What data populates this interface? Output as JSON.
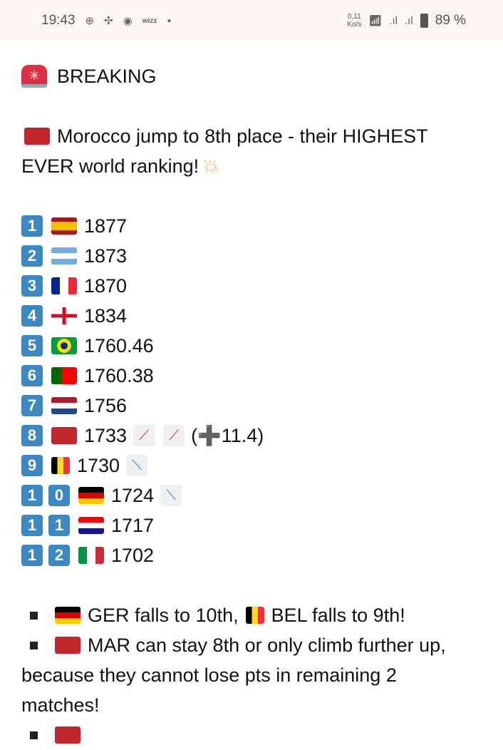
{
  "status_bar": {
    "time": "19:43",
    "speed_top": "0,11",
    "speed_bottom": "Ko/s",
    "battery": "89 %",
    "icons": [
      "cricket-icon",
      "fan-icon",
      "location-icon",
      "wizz-icon",
      "dot-icon",
      "wifi-icon",
      "signal-icon",
      "signal-icon",
      "battery-icon"
    ]
  },
  "post": {
    "headline": "BREAKING",
    "intro_line1": "Morocco jump to 8th place - their HIGHEST",
    "intro_line2": "EVER world ranking!",
    "rankings": [
      {
        "rank": "1",
        "country": "Spain",
        "points": "1877"
      },
      {
        "rank": "2",
        "country": "Argentina",
        "points": "1873"
      },
      {
        "rank": "3",
        "country": "France",
        "points": "1870"
      },
      {
        "rank": "4",
        "country": "England",
        "points": "1834"
      },
      {
        "rank": "5",
        "country": "Brazil",
        "points": "1760.46"
      },
      {
        "rank": "6",
        "country": "Portugal",
        "points": "1760.38"
      },
      {
        "rank": "7",
        "country": "Netherlands",
        "points": "1756"
      },
      {
        "rank": "8",
        "country": "Morocco",
        "points": "1733",
        "trend": "up",
        "change": "(➕11.4)"
      },
      {
        "rank": "9",
        "country": "Belgium",
        "points": "1730",
        "trend": "down"
      },
      {
        "rank": "10",
        "country": "Germany",
        "points": "1724",
        "trend": "down"
      },
      {
        "rank": "11",
        "country": "Croatia",
        "points": "1717"
      },
      {
        "rank": "12",
        "country": "Italy",
        "points": "1702"
      }
    ],
    "bullet1_a": "GER falls to 10th,",
    "bullet1_b": "BEL falls to 9th!",
    "bullet2_a": "MAR can stay 8th or only climb further up,",
    "bullet2_b": "because they cannot lose pts in remaining 2",
    "bullet2_c": "matches!"
  }
}
